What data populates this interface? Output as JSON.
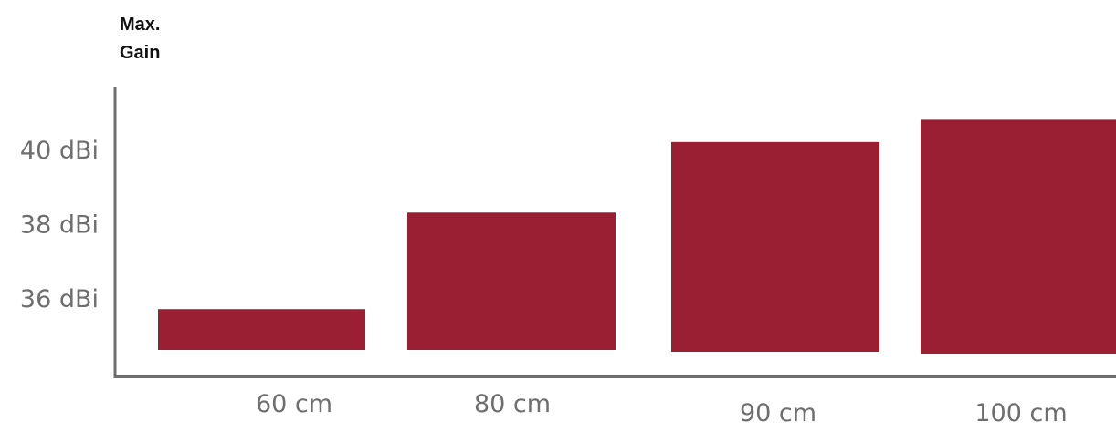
{
  "chart_data": {
    "type": "bar",
    "ylabel": "Max. Gain",
    "ylabel_lines": [
      "Max.",
      "Gain"
    ],
    "categories": [
      "60 cm",
      "80 cm",
      "90 cm",
      "100 cm"
    ],
    "values": [
      35.7,
      38.3,
      40.2,
      40.8
    ],
    "y_ticks": [
      {
        "value": 36,
        "label": "36 dBi"
      },
      {
        "value": 38,
        "label": "38 dBi"
      },
      {
        "value": 40,
        "label": "40 dBi"
      }
    ],
    "ylim": [
      34.5,
      41
    ],
    "grid": false,
    "legend": "none",
    "colors": {
      "bar": "#9a1f33",
      "axis": "#6e6e6e",
      "tick_text": "#6e6e6e",
      "label_text": "#111111"
    }
  }
}
